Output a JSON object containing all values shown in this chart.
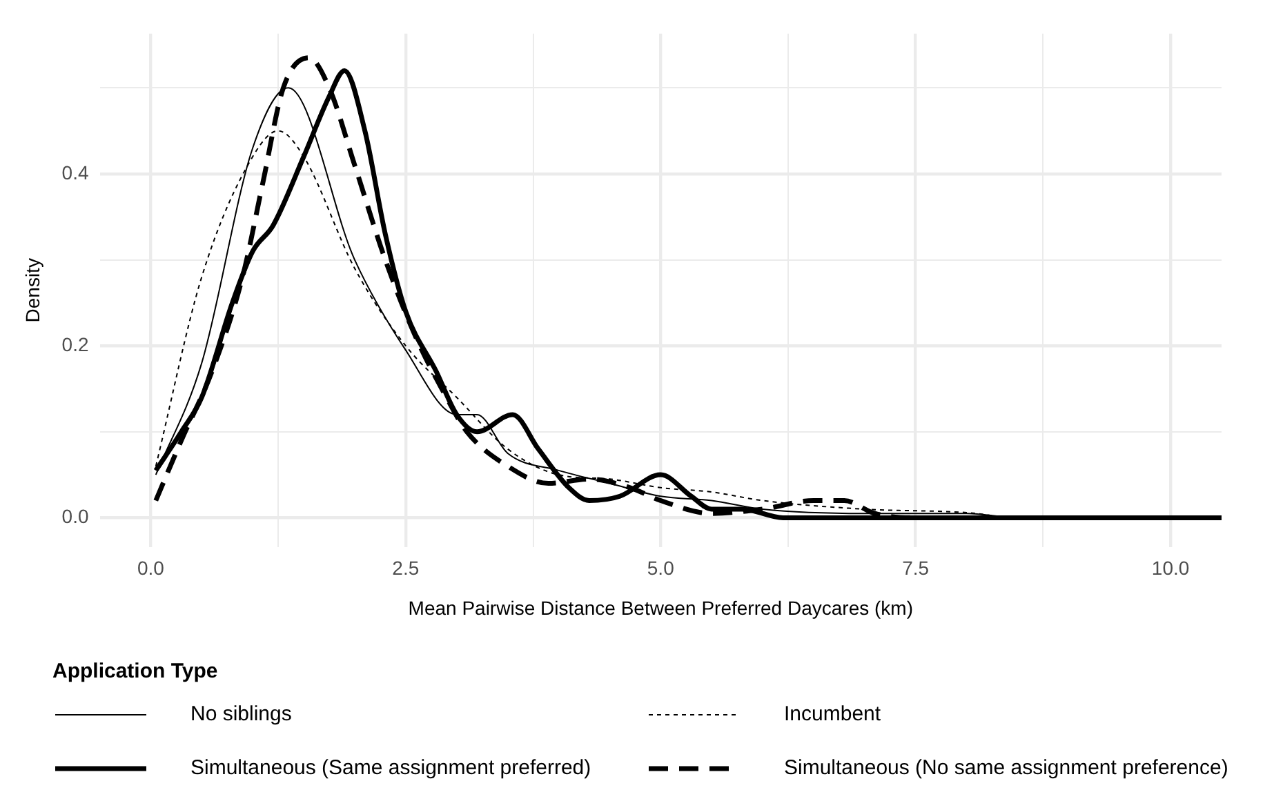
{
  "chart_data": {
    "type": "line",
    "xlabel": "Mean Pairwise Distance Between Preferred Daycares (km)",
    "ylabel": "Density",
    "legend_title": "Application Type",
    "legend": "bottom",
    "grid": true,
    "marker": "none",
    "xlim": [
      -0.5,
      10.5
    ],
    "xticks": [
      {
        "value": 0,
        "label": "0.0"
      },
      {
        "value": 1.25,
        "label": null
      },
      {
        "value": 2.5,
        "label": "2.5"
      },
      {
        "value": 3.75,
        "label": null
      },
      {
        "value": 5,
        "label": "5.0"
      },
      {
        "value": 6.25,
        "label": null
      },
      {
        "value": 7.5,
        "label": "7.5"
      },
      {
        "value": 8.75,
        "label": null
      },
      {
        "value": 10,
        "label": "10.0"
      }
    ],
    "ylim": [
      -0.034,
      0.563
    ],
    "yticks": [
      {
        "value": 0,
        "label": "0.0"
      },
      {
        "value": 0.1,
        "label": null
      },
      {
        "value": 0.2,
        "label": "0.2"
      },
      {
        "value": 0.3,
        "label": null
      },
      {
        "value": 0.4,
        "label": "0.4"
      },
      {
        "value": 0.5,
        "label": null
      }
    ],
    "series": [
      {
        "name": "No siblings",
        "color": "#000000",
        "line_style": "solid",
        "x": [
          0.05,
          0.5,
          1.0,
          1.35,
          2.0,
          2.5,
          3.0,
          3.2,
          3.5,
          4.0,
          4.5,
          5.0,
          5.5,
          6.0,
          7.0,
          8.0,
          8.5,
          10.5
        ],
        "values": [
          0.05,
          0.18,
          0.43,
          0.5,
          0.3,
          0.195,
          0.12,
          0.12,
          0.075,
          0.055,
          0.04,
          0.025,
          0.02,
          0.01,
          0.005,
          0.005,
          0,
          0
        ]
      },
      {
        "name": "Incumbent",
        "color": "#000000",
        "line_style": "dotted",
        "x": [
          0.05,
          0.5,
          1.0,
          1.25,
          1.5,
          2.0,
          2.5,
          3.0,
          3.5,
          4.0,
          4.5,
          5.0,
          5.5,
          6.0,
          7.0,
          8.0,
          8.5,
          10.5
        ],
        "values": [
          0.06,
          0.28,
          0.42,
          0.45,
          0.42,
          0.29,
          0.2,
          0.14,
          0.08,
          0.05,
          0.045,
          0.035,
          0.03,
          0.02,
          0.01,
          0.006,
          0,
          0
        ]
      },
      {
        "name": "Simultaneous (Same assignment preferred)",
        "color": "#000000",
        "line_style": "solid",
        "x": [
          0.05,
          0.3,
          0.5,
          0.8,
          1.0,
          1.2,
          1.5,
          1.75,
          1.9,
          2.1,
          2.3,
          2.5,
          2.8,
          3.0,
          3.2,
          3.55,
          3.8,
          4.1,
          4.3,
          4.6,
          5.0,
          5.3,
          5.5,
          5.8,
          6.2,
          7.0,
          10.5
        ],
        "values": [
          0.055,
          0.1,
          0.14,
          0.25,
          0.31,
          0.34,
          0.42,
          0.49,
          0.52,
          0.45,
          0.33,
          0.24,
          0.17,
          0.12,
          0.1,
          0.12,
          0.08,
          0.035,
          0.02,
          0.025,
          0.05,
          0.025,
          0.01,
          0.01,
          0,
          0,
          0
        ]
      },
      {
        "name": "Simultaneous (No same assignment preference)",
        "color": "#000000",
        "line_style": "dashed",
        "x": [
          0.05,
          0.3,
          0.6,
          0.9,
          1.1,
          1.3,
          1.55,
          1.75,
          2.0,
          2.3,
          2.6,
          2.9,
          3.1,
          3.5,
          3.9,
          4.3,
          4.7,
          5.0,
          5.5,
          6.0,
          6.5,
          6.8,
          7.1,
          7.5,
          8.0,
          10.5
        ],
        "values": [
          0.02,
          0.09,
          0.17,
          0.28,
          0.39,
          0.5,
          0.535,
          0.5,
          0.41,
          0.3,
          0.21,
          0.14,
          0.1,
          0.06,
          0.04,
          0.045,
          0.035,
          0.02,
          0.005,
          0.01,
          0.02,
          0.02,
          0.005,
          0,
          0,
          0
        ]
      }
    ]
  }
}
